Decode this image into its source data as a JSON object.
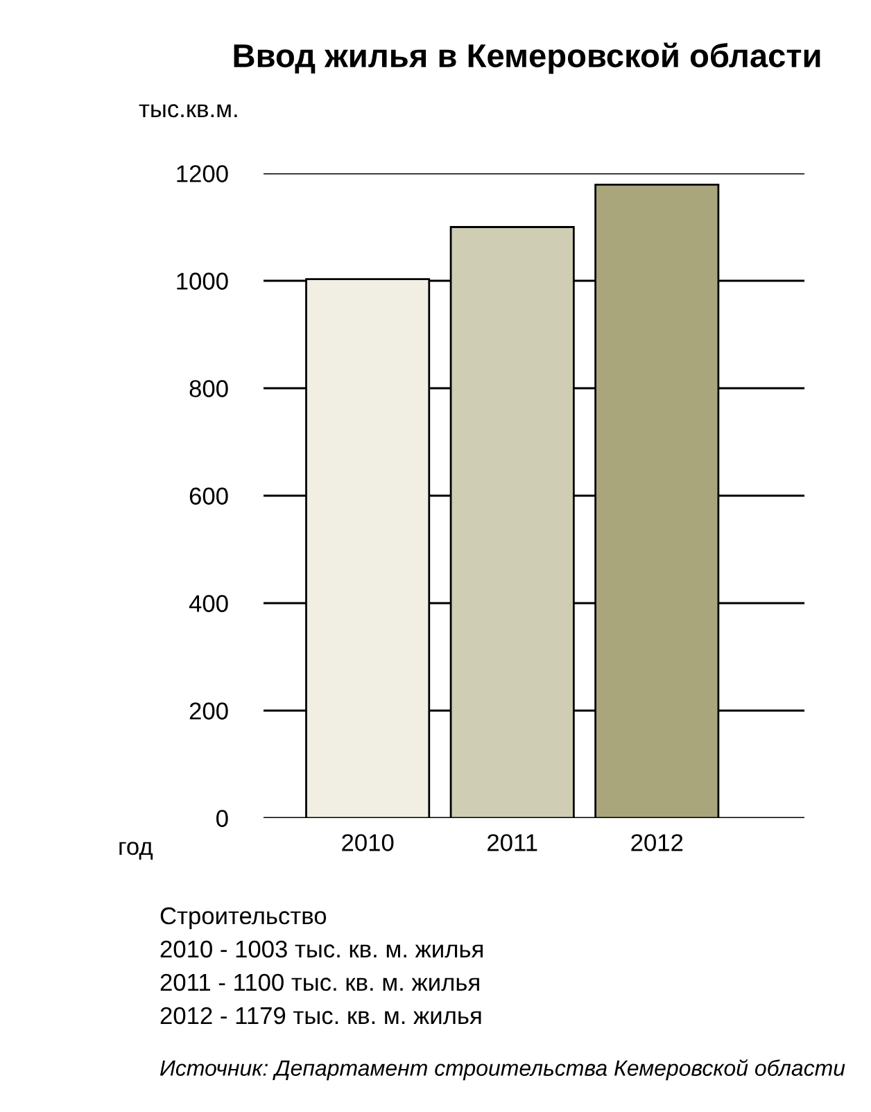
{
  "chart_data": {
    "type": "bar",
    "title": "Ввод жилья в Кемеровской области",
    "ylabel": "тыс.кв.м.",
    "xlabel": "год",
    "categories": [
      "2010",
      "2011",
      "2012"
    ],
    "values": [
      1003,
      1100,
      1179
    ],
    "colors": [
      "#f1efe3",
      "#cfcdb4",
      "#a9a67c"
    ],
    "ylim": [
      0,
      1200
    ],
    "yticks": [
      0,
      200,
      400,
      600,
      800,
      1000,
      1200
    ],
    "grid": "y",
    "annotations": [
      "Строительство",
      "2010 - 1003 тыс. кв. м. жилья",
      "2011 - 1100 тыс. кв. м. жилья",
      "2012 - 1179 тыс. кв. м. жилья",
      "Источник: Департамент строительства Кемеровской области"
    ]
  }
}
